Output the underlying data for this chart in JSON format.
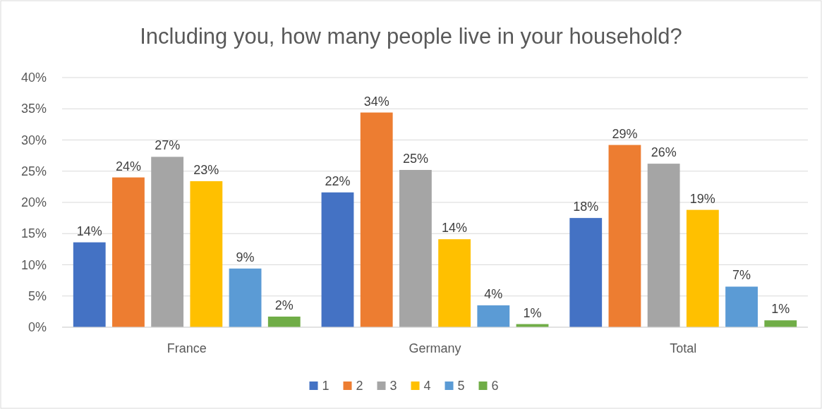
{
  "chart_data": {
    "type": "bar",
    "title": "Including you, how many people live in your household?",
    "categories": [
      "France",
      "Germany",
      "Total"
    ],
    "series": [
      {
        "name": "1",
        "color": "#4472c4",
        "values": [
          13.6,
          21.6,
          17.5
        ],
        "value_labels": [
          "14%",
          "22%",
          "18%"
        ]
      },
      {
        "name": "2",
        "color": "#ed7d31",
        "values": [
          24.0,
          34.4,
          29.2
        ],
        "value_labels": [
          "24%",
          "34%",
          "29%"
        ]
      },
      {
        "name": "3",
        "color": "#a5a5a5",
        "values": [
          27.3,
          25.2,
          26.2
        ],
        "value_labels": [
          "27%",
          "25%",
          "26%"
        ]
      },
      {
        "name": "4",
        "color": "#ffc000",
        "values": [
          23.4,
          14.1,
          18.8
        ],
        "value_labels": [
          "23%",
          "14%",
          "19%"
        ]
      },
      {
        "name": "5",
        "color": "#5b9bd5",
        "values": [
          9.4,
          3.5,
          6.5
        ],
        "value_labels": [
          "9%",
          "4%",
          "7%"
        ]
      },
      {
        "name": "6",
        "color": "#70ad47",
        "values": [
          1.7,
          0.5,
          1.1
        ],
        "value_labels": [
          "2%",
          "1%",
          "1%"
        ]
      }
    ],
    "ylim": [
      0,
      40
    ],
    "yticks": [
      {
        "value": 0,
        "label": "0%"
      },
      {
        "value": 5,
        "label": "5%"
      },
      {
        "value": 10,
        "label": "10%"
      },
      {
        "value": 15,
        "label": "15%"
      },
      {
        "value": 20,
        "label": "20%"
      },
      {
        "value": 25,
        "label": "25%"
      },
      {
        "value": 30,
        "label": "30%"
      },
      {
        "value": 35,
        "label": "35%"
      },
      {
        "value": 40,
        "label": "40%"
      }
    ],
    "grid": "y",
    "legend": "bottom"
  }
}
